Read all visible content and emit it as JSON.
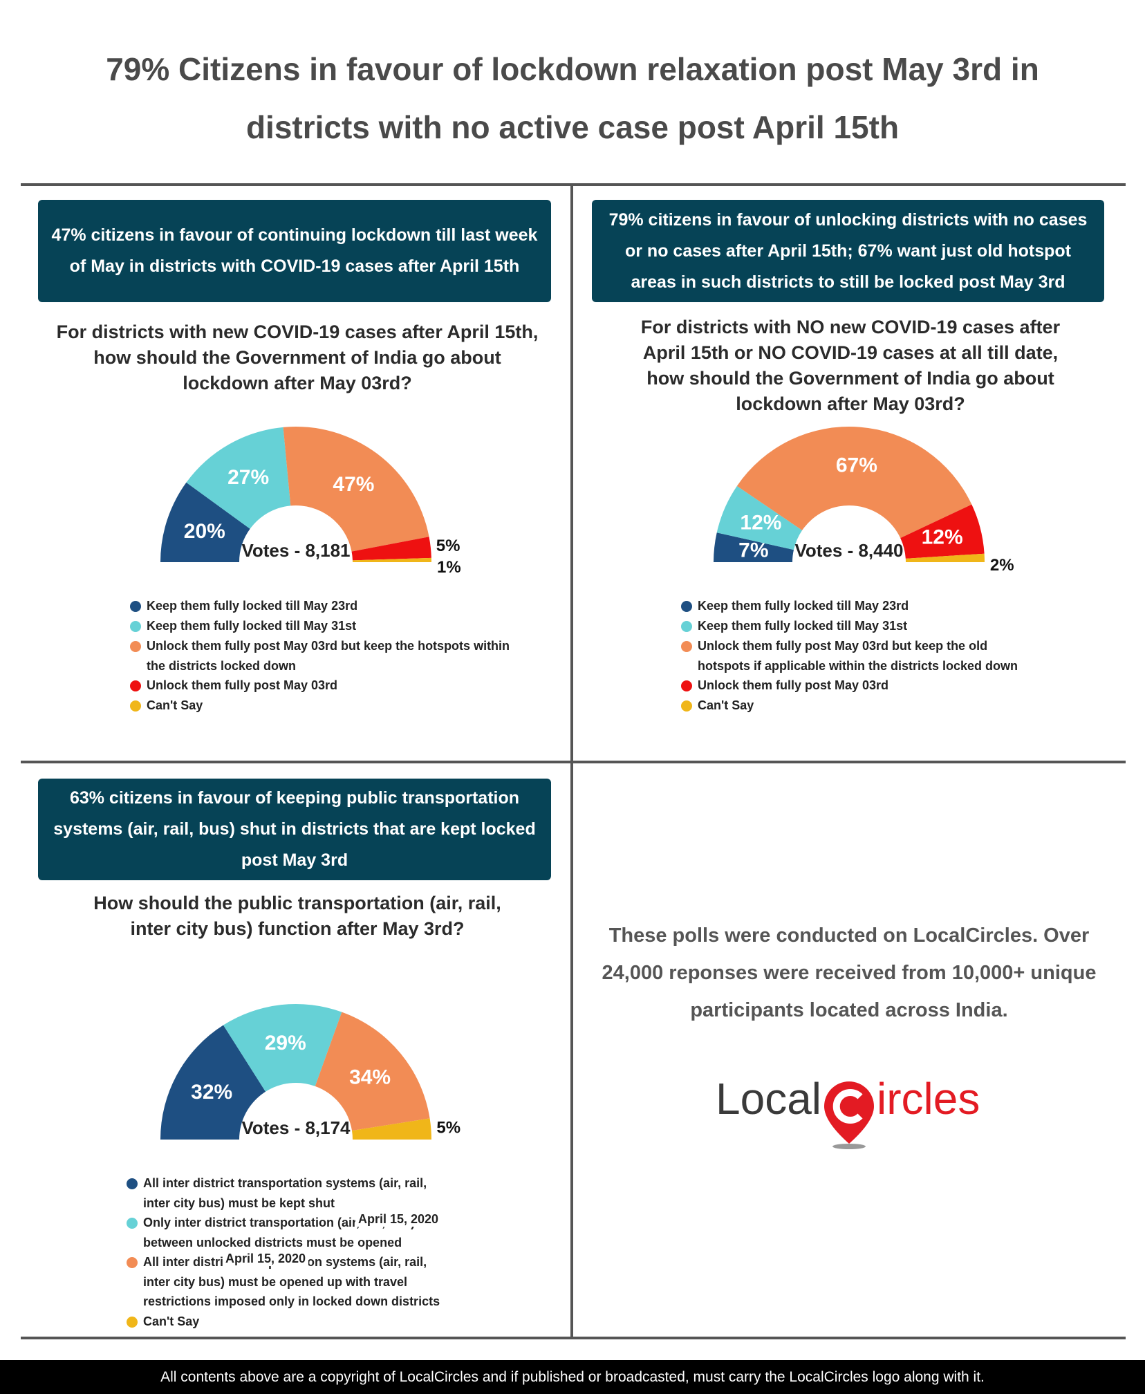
{
  "title": "79% Citizens in favour of lockdown relaxation post May 3rd in districts with no active case post April 15th",
  "chart_data": [
    {
      "type": "half-donut",
      "headline": "47% citizens in favour of continuing lockdown till last week of May in districts with COVID-19 cases after April 15th",
      "title": "For districts with new COVID-19 cases after April 15th, how should the Government of India go about lockdown after May 03rd?",
      "center_label": "Votes - 8,181",
      "categories": [
        "Keep them fully locked till May 23rd",
        "Keep them fully locked till May 31st",
        "Unlock them fully post May 03rd but keep the hotspots within the districts locked down",
        "Unlock them fully post May 03rd",
        "Can't Say"
      ],
      "values": [
        20,
        27,
        47,
        5,
        1
      ],
      "value_labels": [
        "20%",
        "27%",
        "47%",
        "5%",
        "1%"
      ],
      "colors": [
        "#1e4f82",
        "#66d1d6",
        "#f28c55",
        "#ee1111",
        "#f0b619"
      ]
    },
    {
      "type": "half-donut",
      "headline": "79% citizens in favour of unlocking districts with no cases or no cases after April 15th; 67% want just old hotspot areas in such districts to still be locked post May 3rd",
      "title": "For districts with NO new COVID-19 cases after April 15th or NO COVID-19 cases at all till date, how should the Government of India go about lockdown after May 03rd?",
      "center_label": "Votes - 8,440",
      "categories": [
        "Keep them fully locked till May 23rd",
        "Keep them fully locked till May 31st",
        "Unlock them fully post May 03rd but keep the old hotspots if applicable within the districts locked down",
        "Unlock them fully post May 03rd",
        "Can't Say"
      ],
      "values": [
        7,
        12,
        67,
        12,
        2
      ],
      "value_labels": [
        "7%",
        "12%",
        "67%",
        "12%",
        "2%"
      ],
      "colors": [
        "#1e4f82",
        "#66d1d6",
        "#f28c55",
        "#ee1111",
        "#f0b619"
      ]
    },
    {
      "type": "half-donut",
      "headline": "63% citizens in favour of keeping public transportation systems (air, rail, bus) shut in districts that are kept locked post May 3rd",
      "title": "How should the public transportation (air, rail, inter city bus) function after May 3rd?",
      "center_label": "Votes - 8,174",
      "categories": [
        "All inter district transportation systems (air, rail, inter city bus) must be kept shut",
        "Only inter district transportation (air, rail, bus) between unlocked districts must be opened",
        "All inter district transportation systems (air, rail, inter city bus) must be opened up with travel restrictions imposed only in locked down districts",
        "Can't Say"
      ],
      "values": [
        32,
        29,
        34,
        5
      ],
      "value_labels": [
        "32%",
        "29%",
        "34%",
        "5%"
      ],
      "colors": [
        "#1e4f82",
        "#66d1d6",
        "#f28c55",
        "#f0b619"
      ],
      "annotations": [
        "April 15, 2020",
        "April 15, 2020"
      ]
    }
  ],
  "note": "These polls were conducted on LocalCircles. Over 24,000 reponses were received from 10,000+ unique participants located across India.",
  "logo": [
    "Local",
    "ircles"
  ],
  "footer": "All contents above are a copyright of LocalCircles and if published or broadcasted, must carry the LocalCircles logo along with it."
}
